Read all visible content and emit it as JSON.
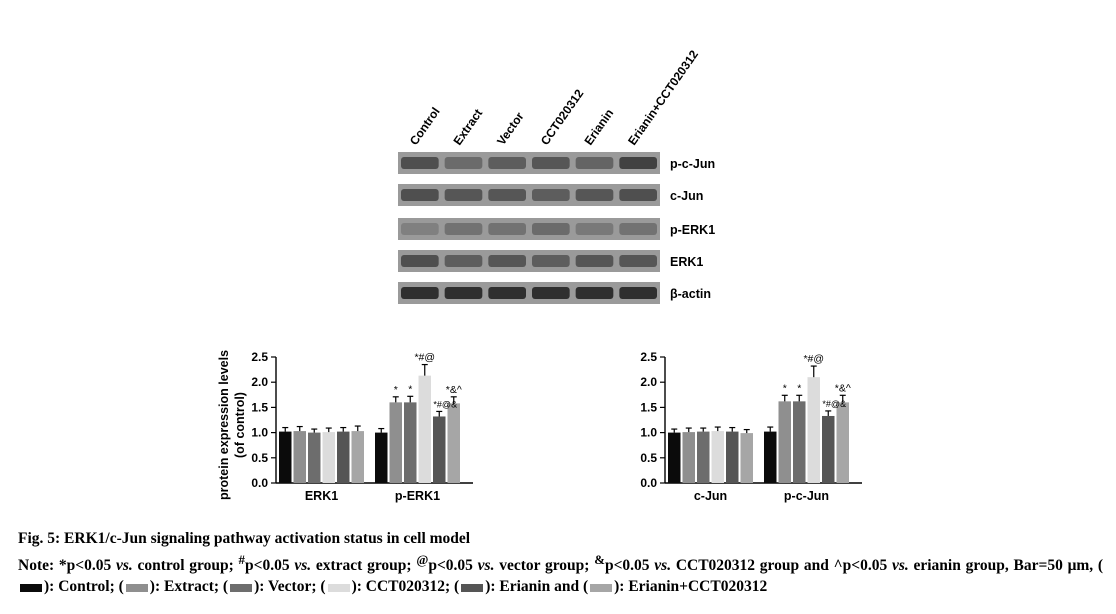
{
  "blot": {
    "lanes": [
      "Control",
      "Extract",
      "Vector",
      "CCT020312",
      "Erianin",
      "Erianin+CCT020312"
    ],
    "bands": [
      "p-c-Jun",
      "c-Jun",
      "p-ERK1",
      "ERK1",
      "β-actin"
    ]
  },
  "chart_data": [
    {
      "type": "bar",
      "ylabel": "protein expression levels\n(of control)",
      "ylim": [
        0,
        2.5
      ],
      "yticks": [
        "0.0",
        "0.5",
        "1.0",
        "1.5",
        "2.0",
        "2.5"
      ],
      "categories": [
        "ERK1",
        "p-ERK1"
      ],
      "series": [
        {
          "values": [
            1.02,
            1.0
          ],
          "errors": [
            0.08,
            0.08
          ]
        },
        {
          "values": [
            1.03,
            1.6
          ],
          "errors": [
            0.09,
            0.11
          ]
        },
        {
          "values": [
            1.0,
            1.6
          ],
          "errors": [
            0.07,
            0.12
          ]
        },
        {
          "values": [
            1.01,
            2.13
          ],
          "errors": [
            0.08,
            0.22
          ]
        },
        {
          "values": [
            1.02,
            1.32
          ],
          "errors": [
            0.08,
            0.1
          ]
        },
        {
          "values": [
            1.03,
            1.58
          ],
          "errors": [
            0.1,
            0.13
          ]
        }
      ],
      "annotations": [
        {
          "category": 1,
          "series": 1,
          "text": "*"
        },
        {
          "category": 1,
          "series": 2,
          "text": "*"
        },
        {
          "category": 1,
          "series": 3,
          "text": "*#@"
        },
        {
          "category": 1,
          "series": 4,
          "text": "*#@&"
        },
        {
          "category": 1,
          "series": 5,
          "text": "*&^"
        }
      ]
    },
    {
      "type": "bar",
      "ylabel": "",
      "ylim": [
        0,
        2.5
      ],
      "yticks": [
        "0.0",
        "0.5",
        "1.0",
        "1.5",
        "2.0",
        "2.5"
      ],
      "categories": [
        "c-Jun",
        "p-c-Jun"
      ],
      "series": [
        {
          "values": [
            1.0,
            1.02
          ],
          "errors": [
            0.07,
            0.09
          ]
        },
        {
          "values": [
            1.01,
            1.62
          ],
          "errors": [
            0.08,
            0.12
          ]
        },
        {
          "values": [
            1.02,
            1.62
          ],
          "errors": [
            0.07,
            0.12
          ]
        },
        {
          "values": [
            1.03,
            2.1
          ],
          "errors": [
            0.08,
            0.22
          ]
        },
        {
          "values": [
            1.02,
            1.33
          ],
          "errors": [
            0.08,
            0.1
          ]
        },
        {
          "values": [
            0.99,
            1.6
          ],
          "errors": [
            0.07,
            0.14
          ]
        }
      ],
      "annotations": [
        {
          "category": 1,
          "series": 1,
          "text": "*"
        },
        {
          "category": 1,
          "series": 2,
          "text": "*"
        },
        {
          "category": 1,
          "series": 3,
          "text": "*#@"
        },
        {
          "category": 1,
          "series": 4,
          "text": "*#@&"
        },
        {
          "category": 1,
          "series": 5,
          "text": "*&^"
        }
      ]
    }
  ],
  "colors": {
    "control": "#0b0b0b",
    "extract": "#8f8f8f",
    "vector": "#6d6d6d",
    "cct020312": "#dcdcdc",
    "erianin": "#555555",
    "combo": "#a6a6a6"
  },
  "caption": {
    "title": "Fig. 5: ERK1/c-Jun signaling pathway activation status in cell model",
    "note_a": "Note: *p<0.05 ",
    "vs": "vs.",
    "note_b": " control group; ",
    "hash_sup": "#",
    "note_c": "p<0.05 ",
    "note_d": " extract group; ",
    "at_sup": "@",
    "note_e": "p<0.05 ",
    "note_f": " vector group; ",
    "amp_sup": "&",
    "note_g": "p<0.05 ",
    "note_h": " CCT020312 group and ^p<0.05 ",
    "note_i": " erianin group, Bar=50 μm, (",
    "legend_control": "): Control; (",
    "legend_extract": "): Extract; (",
    "legend_vector": "): Vector; (",
    "legend_cct": "): CCT020312; (",
    "legend_erianin": "): Erianin and (",
    "legend_combo": "):",
    "tail": "Erianin+CCT020312"
  }
}
